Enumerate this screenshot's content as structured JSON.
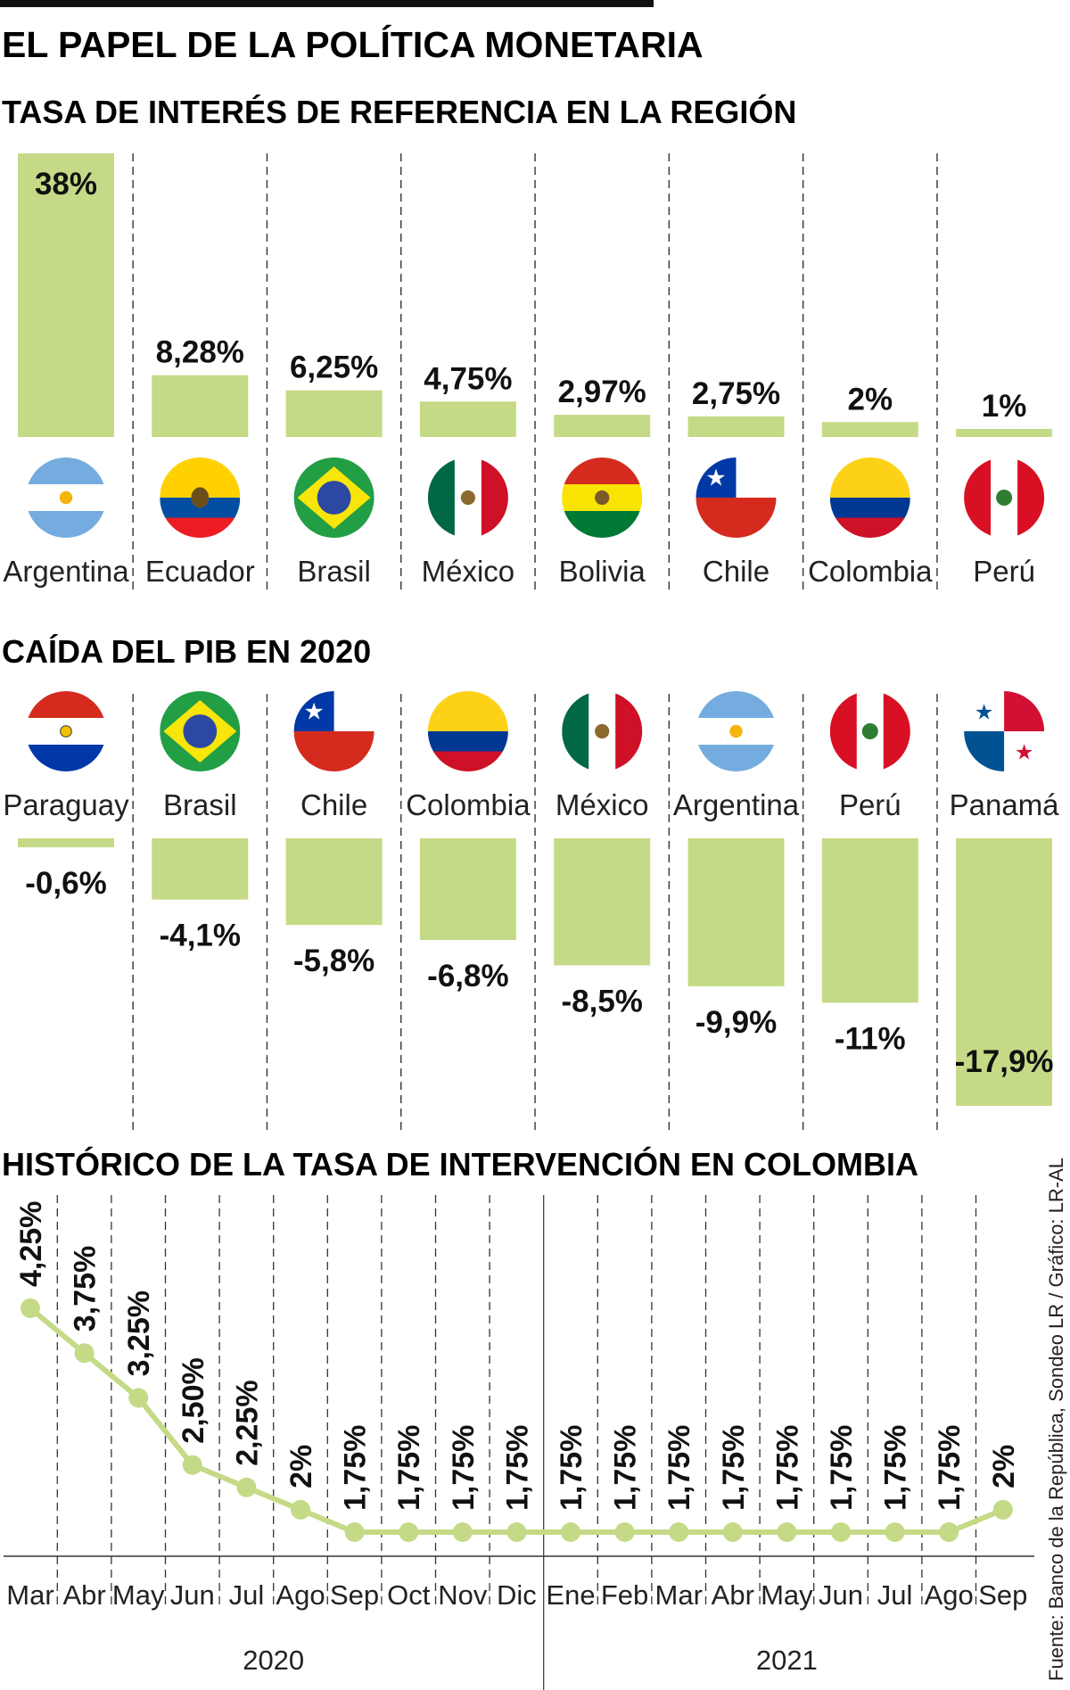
{
  "title": "EL PAPEL DE LA POLÍTICA MONETARIA",
  "source": "Fuente: Banco de la República, Sondeo LR / Gráfico: LR-AL",
  "colors": {
    "bar": "#c5da86",
    "text": "#111111",
    "divider": "#333333"
  },
  "chart_data": [
    {
      "type": "bar",
      "title": "TASA DE INTERÉS DE REFERENCIA EN LA REGIÓN",
      "categories": [
        "Argentina",
        "Ecuador",
        "Brasil",
        "México",
        "Bolivia",
        "Chile",
        "Colombia",
        "Perú"
      ],
      "values": [
        38,
        8.28,
        6.25,
        4.75,
        2.97,
        2.75,
        2,
        1
      ],
      "labels": [
        "38%",
        "8,28%",
        "6,25%",
        "4,75%",
        "2,97%",
        "2,75%",
        "2%",
        "1%"
      ],
      "ylim": [
        0,
        38
      ],
      "unit": "%"
    },
    {
      "type": "bar",
      "title": "CAÍDA DEL PIB EN 2020",
      "categories": [
        "Paraguay",
        "Brasil",
        "Chile",
        "Colombia",
        "México",
        "Argentina",
        "Perú",
        "Panamá"
      ],
      "values": [
        -0.6,
        -4.1,
        -5.8,
        -6.8,
        -8.5,
        -9.9,
        -11,
        -17.9
      ],
      "labels": [
        "-0,6%",
        "-4,1%",
        "-5,8%",
        "-6,8%",
        "-8,5%",
        "-9,9%",
        "-11%",
        "-17,9%"
      ],
      "ylim": [
        -17.9,
        0
      ],
      "unit": "%"
    },
    {
      "type": "line",
      "title": "HISTÓRICO DE LA TASA DE INTERVENCIÓN EN COLOMBIA",
      "categories": [
        "Mar",
        "Abr",
        "May",
        "Jun",
        "Jul",
        "Ago",
        "Sep",
        "Oct",
        "Nov",
        "Dic",
        "Ene",
        "Feb",
        "Mar",
        "Abr",
        "May",
        "Jun",
        "Jul",
        "Ago",
        "Sep"
      ],
      "values": [
        4.25,
        3.75,
        3.25,
        2.5,
        2.25,
        2,
        1.75,
        1.75,
        1.75,
        1.75,
        1.75,
        1.75,
        1.75,
        1.75,
        1.75,
        1.75,
        1.75,
        1.75,
        2
      ],
      "labels": [
        "4,25%",
        "3,75%",
        "3,25%",
        "2,50%",
        "2,25%",
        "2%",
        "1,75%",
        "1,75%",
        "1,75%",
        "1,75%",
        "1,75%",
        "1,75%",
        "1,75%",
        "1,75%",
        "1,75%",
        "1,75%",
        "1,75%",
        "1,75%",
        "2%"
      ],
      "years": [
        {
          "label": "2020",
          "months": 10
        },
        {
          "label": "2021",
          "months": 9
        }
      ],
      "ylim": [
        1.75,
        4.25
      ],
      "unit": "%"
    }
  ]
}
